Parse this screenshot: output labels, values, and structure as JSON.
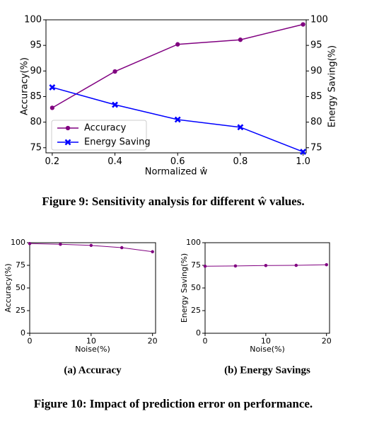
{
  "chart_data": [
    {
      "type": "line",
      "xlabel": "Normalized ŵ",
      "ylabel": "Accuracy(%)",
      "y2label": "Energy Saving(%)",
      "x": [
        0.2,
        0.4,
        0.6,
        0.8,
        1.0
      ],
      "series": [
        {
          "name": "Accuracy",
          "color": "#800080",
          "marker": "o",
          "values": [
            82.8,
            89.9,
            95.2,
            96.1,
            99.1
          ]
        },
        {
          "name": "Energy Saving",
          "color": "#0000ff",
          "marker": "x",
          "axis": "y2",
          "values": [
            86.8,
            83.4,
            80.5,
            79.0,
            74.2
          ]
        }
      ],
      "xlim": [
        0.18,
        1.01
      ],
      "xticks": [
        0.2,
        0.4,
        0.6,
        0.8,
        {
          "value": 1.0,
          "label": "1.0"
        }
      ],
      "ylim": [
        74,
        100
      ],
      "yticks": [
        75,
        80,
        85,
        90,
        95,
        100
      ],
      "y2lim": [
        74,
        100
      ],
      "y2ticks": [
        75,
        80,
        85,
        90,
        95,
        100
      ],
      "legend": "lower left"
    },
    {
      "type": "line",
      "caption": "(a) Accuracy",
      "xlabel": "Noise(%)",
      "ylabel": "Accuracy(%)",
      "x": [
        0,
        5,
        10,
        15,
        20
      ],
      "series": [
        {
          "color": "#800080",
          "marker": "o",
          "values": [
            99,
            98.2,
            97,
            94.5,
            90
          ]
        }
      ],
      "xlim": [
        0,
        20.5
      ],
      "xticks": [
        0,
        10,
        20
      ],
      "ylim": [
        0,
        100
      ],
      "yticks": [
        0,
        25,
        50,
        75,
        100
      ]
    },
    {
      "type": "line",
      "caption": "(b) Energy Savings",
      "xlabel": "Noise(%)",
      "ylabel": "Energy Saving(%)",
      "x": [
        0,
        5,
        10,
        15,
        20
      ],
      "series": [
        {
          "color": "#800080",
          "marker": "o",
          "values": [
            74,
            74.3,
            74.8,
            75,
            75.7
          ]
        }
      ],
      "xlim": [
        0,
        20.5
      ],
      "xticks": [
        0,
        10,
        20
      ],
      "ylim": [
        0,
        100
      ],
      "yticks": [
        0,
        25,
        50,
        75,
        100
      ]
    }
  ],
  "captions": {
    "figure9": "Figure 9: Sensitivity analysis for different ŵ values.",
    "figure10": "Figure 10: Impact of prediction error on performance."
  }
}
